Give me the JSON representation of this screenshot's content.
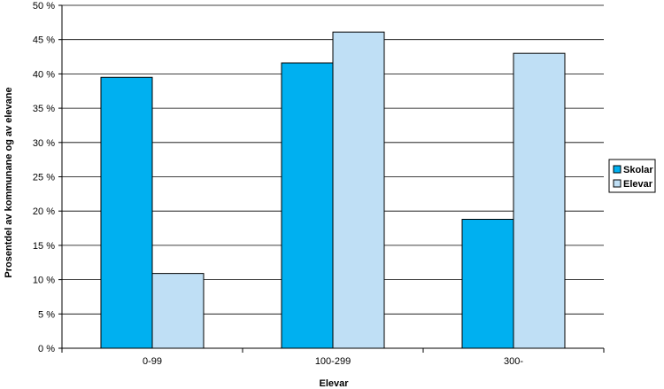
{
  "chart_data": {
    "type": "bar",
    "categories": [
      "0-99",
      "100-299",
      "300-"
    ],
    "series": [
      {
        "name": "Skolar",
        "values": [
          39.5,
          41.6,
          18.8
        ],
        "color": "#00b0f0"
      },
      {
        "name": "Elevar",
        "values": [
          10.9,
          46.1,
          43.0
        ],
        "color": "#bfdff5"
      }
    ],
    "xlabel": "Elevar",
    "ylabel": "Prosentdel av kommunane og av elevane",
    "ylim": [
      0,
      50
    ],
    "y_ticks": [
      0,
      5,
      10,
      15,
      20,
      25,
      30,
      35,
      40,
      45,
      50
    ],
    "y_tick_format": "{v} %",
    "grid": true,
    "legend_position": "right"
  }
}
